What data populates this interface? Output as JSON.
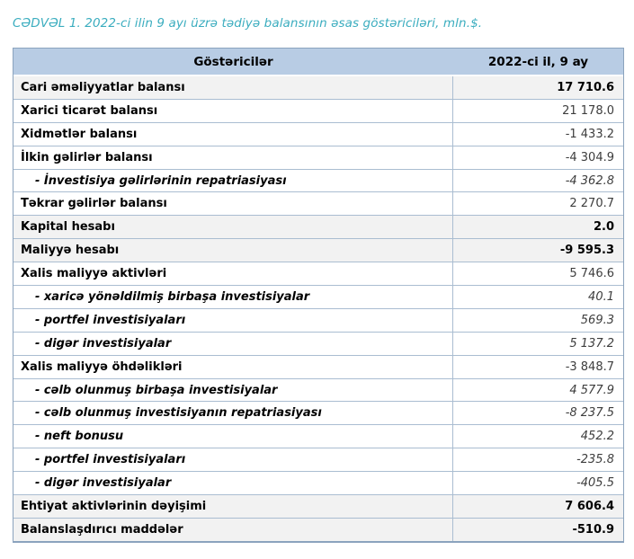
{
  "title": "CƏDVƏL 1. 2022-ci ilin 9 ayı üzrə tədiyə balansının əsas göstəriciləri, mln.$.",
  "colors": {
    "title_text": "#3badbf",
    "header_bg": "#b8cce4",
    "total_row_bg": "#f2f2f2",
    "row_border": "#aabdd1",
    "outer_border": "#8ba3bd",
    "value_text": "#3d3d3d"
  },
  "table": {
    "columns": [
      {
        "label": "Göstəricilər"
      },
      {
        "label": "2022-ci il, 9 ay"
      }
    ],
    "rows": [
      {
        "label": "Cari əməliyyatlar balansı",
        "value": "17 710.6",
        "style": "total"
      },
      {
        "label": "Xarici ticarət balansı",
        "value": "21 178.0",
        "style": "main"
      },
      {
        "label": "Xidmətlər balansı",
        "value": "-1 433.2",
        "style": "main"
      },
      {
        "label": "İlkin gəlirlər balansı",
        "value": "-4 304.9",
        "style": "main"
      },
      {
        "label": "- İnvestisiya gəlirlərinin repatriasiyası",
        "value": "-4 362.8",
        "style": "sub"
      },
      {
        "label": "Təkrar gəlirlər balansı",
        "value": "2 270.7",
        "style": "main"
      },
      {
        "label": "Kapital hesabı",
        "value": "2.0",
        "style": "total"
      },
      {
        "label": "Maliyyə hesabı",
        "value": "-9 595.3",
        "style": "total"
      },
      {
        "label": "Xalis maliyyə aktivləri",
        "value": "5 746.6",
        "style": "main"
      },
      {
        "label": "- xaricə yönəldilmiş birbaşa investisiyalar",
        "value": "40.1",
        "style": "sub"
      },
      {
        "label": "- portfel investisiyaları",
        "value": "569.3",
        "style": "sub"
      },
      {
        "label": "- digər investisiyalar",
        "value": "5 137.2",
        "style": "sub"
      },
      {
        "label": "Xalis maliyyə öhdəlikləri",
        "value": "-3 848.7",
        "style": "main"
      },
      {
        "label": "- cəlb olunmuş birbaşa investisiyalar",
        "value": "4 577.9",
        "style": "sub"
      },
      {
        "label": "- cəlb olunmuş investisiyanın repatriasiyası",
        "value": "-8 237.5",
        "style": "sub"
      },
      {
        "label": "- neft bonusu",
        "value": "452.2",
        "style": "sub"
      },
      {
        "label": "- portfel investisiyaları",
        "value": "-235.8",
        "style": "sub"
      },
      {
        "label": "- digər investisiyalar",
        "value": "-405.5",
        "style": "sub"
      },
      {
        "label": "Ehtiyat aktivlərinin dəyişimi",
        "value": "7 606.4",
        "style": "total"
      },
      {
        "label": "Balanslaşdırıcı maddələr",
        "value": "-510.9",
        "style": "total"
      }
    ]
  }
}
